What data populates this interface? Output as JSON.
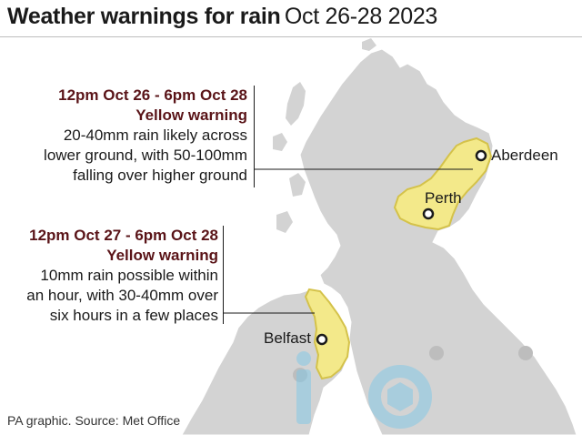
{
  "title": {
    "bold": "Weather warnings for rain",
    "light": "Oct 26-28 2023"
  },
  "warnings": [
    {
      "time": "12pm Oct 26 - 6pm Oct 28",
      "level": "Yellow warning",
      "lines": [
        "20-40mm rain likely across",
        "lower ground, with 50-100mm",
        "falling over higher ground"
      ]
    },
    {
      "time": "12pm Oct 27 - 6pm Oct 28",
      "level": "Yellow warning",
      "lines": [
        "10mm rain possible within",
        "an hour, with 30-40mm over",
        "six hours in a few places"
      ]
    }
  ],
  "cities": {
    "aberdeen": "Aberdeen",
    "perth": "Perth",
    "belfast": "Belfast"
  },
  "source": "PA graphic. Source: Met Office",
  "watermark": "iconic",
  "colors": {
    "land": "#d3d3d3",
    "warning_fill": "#f3e98a",
    "warning_stroke": "#d4c24a",
    "accent_text": "#5a1418"
  }
}
